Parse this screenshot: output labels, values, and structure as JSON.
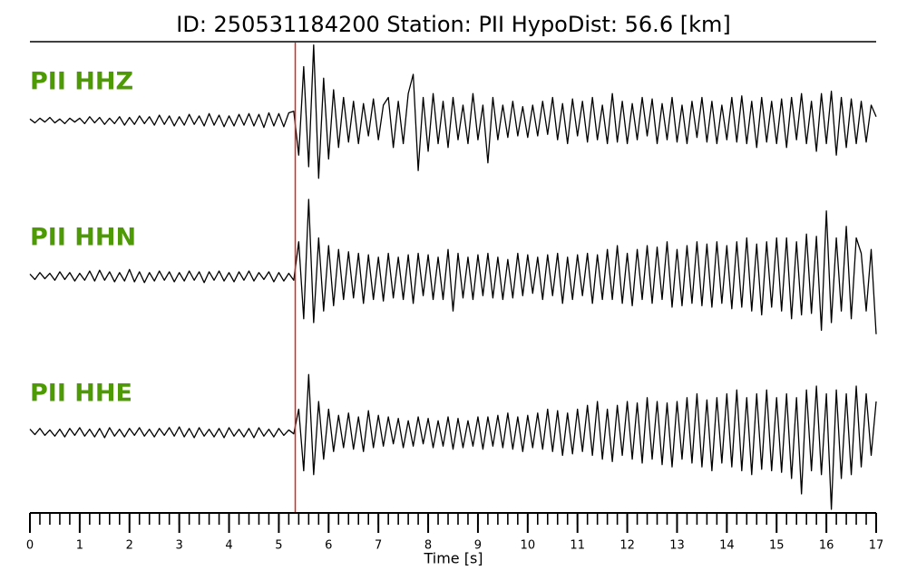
{
  "chart_data": {
    "type": "line",
    "title": "ID: 250531184200   Station: PII   HypoDist:    56.6 [km]",
    "xlabel": "Time [s]",
    "xlim": [
      0,
      17
    ],
    "xticks": [
      0,
      1,
      2,
      3,
      4,
      5,
      6,
      7,
      8,
      9,
      10,
      11,
      12,
      13,
      14,
      15,
      16,
      17
    ],
    "minor_tick_step": 0.2,
    "ylim": [
      -1,
      1
    ],
    "pick_time": 5.33,
    "pick_color": "#e8201a",
    "label_color": "#4e9a06",
    "x": [
      0,
      0.1,
      0.2,
      0.3,
      0.4,
      0.5,
      0.6,
      0.7,
      0.8,
      0.9,
      1,
      1.1,
      1.2,
      1.3,
      1.4,
      1.5,
      1.6,
      1.7,
      1.8,
      1.9,
      2,
      2.1,
      2.2,
      2.3,
      2.4,
      2.5,
      2.6,
      2.7,
      2.8,
      2.9,
      3,
      3.1,
      3.2,
      3.3,
      3.4,
      3.5,
      3.6,
      3.7,
      3.8,
      3.9,
      4,
      4.1,
      4.2,
      4.3,
      4.4,
      4.5,
      4.6,
      4.7,
      4.8,
      4.9,
      5,
      5.1,
      5.2,
      5.3,
      5.4,
      5.5,
      5.6,
      5.7,
      5.8,
      5.9,
      6,
      6.1,
      6.2,
      6.3,
      6.4,
      6.5,
      6.6,
      6.7,
      6.8,
      6.9,
      7,
      7.1,
      7.2,
      7.3,
      7.4,
      7.5,
      7.6,
      7.7,
      7.8,
      7.9,
      8,
      8.1,
      8.2,
      8.3,
      8.4,
      8.5,
      8.6,
      8.7,
      8.8,
      8.9,
      9,
      9.1,
      9.2,
      9.3,
      9.4,
      9.5,
      9.6,
      9.7,
      9.8,
      9.9,
      10,
      10.1,
      10.2,
      10.3,
      10.4,
      10.5,
      10.6,
      10.7,
      10.8,
      10.9,
      11,
      11.1,
      11.2,
      11.3,
      11.4,
      11.5,
      11.6,
      11.7,
      11.8,
      11.9,
      12,
      12.1,
      12.2,
      12.3,
      12.4,
      12.5,
      12.6,
      12.7,
      12.8,
      12.9,
      13,
      13.1,
      13.2,
      13.3,
      13.4,
      13.5,
      13.6,
      13.7,
      13.8,
      13.9,
      14,
      14.1,
      14.2,
      14.3,
      14.4,
      14.5,
      14.6,
      14.7,
      14.8,
      14.9,
      15,
      15.1,
      15.2,
      15.3,
      15.4,
      15.5,
      15.6,
      15.7,
      15.8,
      15.9,
      16,
      16.1,
      16.2,
      16.3,
      16.4,
      16.5,
      16.6,
      16.7,
      16.8,
      16.9,
      17
    ],
    "series": [
      {
        "name": "PII HHZ",
        "color": "#000000",
        "values": [
          0.02,
          -0.03,
          0.03,
          -0.02,
          0.04,
          -0.03,
          0.02,
          -0.04,
          0.03,
          -0.02,
          0.03,
          -0.04,
          0.05,
          -0.03,
          0.04,
          -0.05,
          0.03,
          -0.04,
          0.05,
          -0.06,
          0.04,
          -0.05,
          0.06,
          -0.04,
          0.05,
          -0.06,
          0.07,
          -0.05,
          0.06,
          -0.07,
          0.05,
          -0.06,
          0.08,
          -0.05,
          0.06,
          -0.07,
          0.09,
          -0.06,
          0.07,
          -0.08,
          0.06,
          -0.07,
          0.08,
          -0.06,
          0.09,
          -0.07,
          0.08,
          -0.09,
          0.1,
          -0.07,
          0.09,
          -0.08,
          0.1,
          0.12,
          -0.45,
          0.7,
          -0.6,
          0.98,
          -0.75,
          0.55,
          -0.5,
          0.4,
          -0.35,
          0.3,
          -0.28,
          0.25,
          -0.3,
          0.22,
          -0.2,
          0.28,
          -0.25,
          0.2,
          0.3,
          -0.35,
          0.25,
          -0.3,
          0.35,
          0.6,
          -0.65,
          0.3,
          -0.4,
          0.35,
          -0.3,
          0.25,
          -0.35,
          0.3,
          -0.25,
          0.2,
          -0.3,
          0.35,
          -0.25,
          0.2,
          -0.55,
          0.3,
          -0.25,
          0.2,
          -0.22,
          0.25,
          -0.2,
          0.18,
          -0.22,
          0.2,
          -0.2,
          0.25,
          -0.18,
          0.3,
          -0.25,
          0.22,
          -0.3,
          0.28,
          -0.2,
          0.25,
          -0.28,
          0.3,
          -0.25,
          0.2,
          -0.3,
          0.35,
          -0.28,
          0.25,
          -0.3,
          0.22,
          -0.25,
          0.3,
          -0.2,
          0.28,
          -0.3,
          0.22,
          -0.25,
          0.3,
          -0.28,
          0.2,
          -0.3,
          0.25,
          -0.22,
          0.3,
          -0.28,
          0.25,
          -0.3,
          0.2,
          -0.25,
          0.3,
          -0.28,
          0.32,
          -0.3,
          0.25,
          -0.35,
          0.3,
          -0.28,
          0.25,
          -0.3,
          0.28,
          -0.35,
          0.3,
          -0.25,
          0.35,
          -0.3,
          0.25,
          -0.4,
          0.35,
          -0.3,
          0.38,
          -0.45,
          0.3,
          -0.35,
          0.28,
          -0.3,
          0.25,
          -0.28,
          0.2,
          0.05
        ]
      },
      {
        "name": "PII HHN",
        "color": "#000000",
        "values": [
          0.03,
          -0.04,
          0.05,
          -0.03,
          0.04,
          -0.05,
          0.06,
          -0.04,
          0.05,
          -0.06,
          0.04,
          -0.05,
          0.07,
          -0.06,
          0.08,
          -0.05,
          0.06,
          -0.07,
          0.05,
          -0.06,
          0.09,
          -0.07,
          0.06,
          -0.08,
          0.05,
          -0.06,
          0.07,
          -0.05,
          0.06,
          -0.07,
          0.05,
          -0.06,
          0.07,
          -0.05,
          0.06,
          -0.08,
          0.06,
          -0.05,
          0.07,
          -0.06,
          0.05,
          -0.07,
          0.06,
          -0.05,
          0.07,
          -0.06,
          0.05,
          -0.04,
          0.06,
          -0.07,
          0.05,
          -0.06,
          0.04,
          -0.05,
          0.45,
          -0.55,
          1.0,
          -0.6,
          0.5,
          -0.45,
          0.4,
          -0.38,
          0.35,
          -0.3,
          0.32,
          -0.28,
          0.3,
          -0.35,
          0.28,
          -0.3,
          0.25,
          -0.32,
          0.3,
          -0.28,
          0.25,
          -0.3,
          0.28,
          -0.35,
          0.3,
          -0.25,
          0.28,
          -0.3,
          0.25,
          -0.3,
          0.35,
          -0.45,
          0.3,
          -0.28,
          0.25,
          -0.3,
          0.28,
          -0.25,
          0.3,
          -0.28,
          0.25,
          -0.3,
          0.22,
          -0.28,
          0.3,
          -0.25,
          0.28,
          -0.22,
          0.25,
          -0.3,
          0.28,
          -0.25,
          0.3,
          -0.35,
          0.25,
          -0.3,
          0.28,
          -0.25,
          0.3,
          -0.35,
          0.28,
          -0.3,
          0.35,
          -0.3,
          0.4,
          -0.35,
          0.3,
          -0.38,
          0.35,
          -0.3,
          0.4,
          -0.35,
          0.38,
          -0.3,
          0.45,
          -0.4,
          0.35,
          -0.38,
          0.4,
          -0.35,
          0.45,
          -0.38,
          0.42,
          -0.4,
          0.45,
          -0.35,
          0.4,
          -0.42,
          0.45,
          -0.4,
          0.5,
          -0.45,
          0.42,
          -0.5,
          0.45,
          -0.4,
          0.5,
          -0.45,
          0.5,
          -0.55,
          0.45,
          -0.5,
          0.55,
          -0.48,
          0.52,
          -0.7,
          0.85,
          -0.6,
          0.5,
          -0.45,
          0.65,
          -0.55,
          0.5,
          0.3,
          -0.45,
          0.35,
          -0.75
        ]
      },
      {
        "name": "PII HHE",
        "color": "#000000",
        "values": [
          0.04,
          -0.03,
          0.05,
          -0.04,
          0.03,
          -0.05,
          0.04,
          -0.06,
          0.05,
          -0.04,
          0.06,
          -0.05,
          0.04,
          -0.06,
          0.05,
          -0.07,
          0.06,
          -0.05,
          0.04,
          -0.06,
          0.05,
          -0.04,
          0.06,
          -0.05,
          0.04,
          -0.06,
          0.05,
          -0.04,
          0.06,
          -0.05,
          0.07,
          -0.06,
          0.05,
          -0.07,
          0.06,
          -0.05,
          0.04,
          -0.06,
          0.05,
          -0.07,
          0.06,
          -0.05,
          0.04,
          -0.06,
          0.05,
          -0.07,
          0.06,
          -0.05,
          0.04,
          -0.06,
          0.05,
          -0.04,
          0.03,
          -0.02,
          0.3,
          -0.5,
          0.75,
          -0.55,
          0.4,
          -0.35,
          0.3,
          -0.25,
          0.22,
          -0.2,
          0.25,
          -0.22,
          0.2,
          -0.25,
          0.28,
          -0.2,
          0.22,
          -0.18,
          0.2,
          -0.15,
          0.18,
          -0.2,
          0.15,
          -0.18,
          0.2,
          -0.15,
          0.18,
          -0.2,
          0.15,
          -0.18,
          0.2,
          -0.22,
          0.18,
          -0.2,
          0.15,
          -0.18,
          0.2,
          -0.22,
          0.2,
          -0.18,
          0.22,
          -0.2,
          0.25,
          -0.22,
          0.2,
          -0.25,
          0.22,
          -0.2,
          0.25,
          -0.22,
          0.3,
          -0.25,
          0.28,
          -0.3,
          0.25,
          -0.28,
          0.3,
          -0.25,
          0.35,
          -0.3,
          0.4,
          -0.35,
          0.3,
          -0.38,
          0.35,
          -0.3,
          0.4,
          -0.35,
          0.38,
          -0.4,
          0.45,
          -0.35,
          0.4,
          -0.42,
          0.38,
          -0.45,
          0.4,
          -0.35,
          0.45,
          -0.4,
          0.5,
          -0.45,
          0.42,
          -0.5,
          0.45,
          -0.4,
          0.5,
          -0.45,
          0.55,
          -0.5,
          0.45,
          -0.55,
          0.5,
          -0.48,
          0.55,
          -0.5,
          0.45,
          -0.52,
          0.5,
          -0.6,
          0.45,
          -0.8,
          0.55,
          -0.5,
          0.6,
          -0.55,
          0.5,
          -1.0,
          0.55,
          -0.6,
          0.5,
          -0.55,
          0.6,
          -0.45,
          0.5,
          -0.3,
          0.4
        ]
      }
    ]
  }
}
